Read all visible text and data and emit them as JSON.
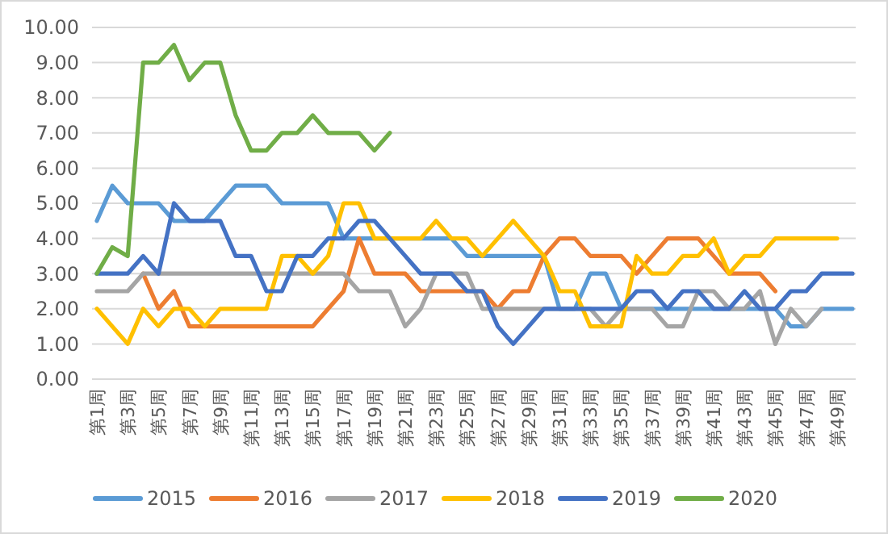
{
  "chart_data": {
    "type": "line",
    "categories": [
      "第1周",
      null,
      "第3周",
      null,
      "第5周",
      null,
      "第7周",
      null,
      "第9周",
      null,
      "第11周",
      null,
      "第13周",
      null,
      "第15周",
      null,
      "第17周",
      null,
      "第19周",
      null,
      "第21周",
      null,
      "第23周",
      null,
      "第25周",
      null,
      "第27周",
      null,
      "第29周",
      null,
      "第31周",
      null,
      "第33周",
      null,
      "第35周",
      null,
      "第37周",
      null,
      "第39周",
      null,
      "第41周",
      null,
      "第43周",
      null,
      "第45周",
      null,
      "第47周",
      null,
      "第49周",
      null
    ],
    "series": [
      {
        "name": "2015",
        "color": "#5b9bd5",
        "values": [
          4.5,
          5.5,
          5,
          5,
          5,
          4.5,
          4.5,
          4.5,
          5,
          5.5,
          5.5,
          5.5,
          5,
          5,
          5,
          5,
          4,
          4,
          4,
          4,
          4,
          4,
          4,
          4,
          3.5,
          3.5,
          3.5,
          3.5,
          3.5,
          3.5,
          2,
          2,
          3,
          3,
          2,
          2,
          2,
          2,
          2,
          2,
          2,
          2,
          2,
          2,
          2,
          1.5,
          1.5,
          2,
          2,
          2
        ]
      },
      {
        "name": "2016",
        "color": "#ed7d31",
        "values": [
          null,
          null,
          null,
          3,
          2,
          2.5,
          1.5,
          1.5,
          1.5,
          1.5,
          1.5,
          1.5,
          1.5,
          1.5,
          1.5,
          2,
          2.5,
          4,
          3,
          3,
          3,
          2.5,
          2.5,
          2.5,
          2.5,
          2.5,
          2,
          2.5,
          2.5,
          3.5,
          4,
          4,
          3.5,
          3.5,
          3.5,
          3,
          3.5,
          4,
          4,
          4,
          3.5,
          3,
          3,
          3,
          2.5,
          null,
          null,
          null,
          null,
          null
        ]
      },
      {
        "name": "2017",
        "color": "#a5a5a5",
        "values": [
          2.5,
          2.5,
          2.5,
          3,
          3,
          3,
          3,
          3,
          3,
          3,
          3,
          3,
          3,
          3,
          3,
          3,
          3,
          2.5,
          2.5,
          2.5,
          1.5,
          2,
          3,
          3,
          3,
          2,
          2,
          2,
          2,
          2,
          2,
          2,
          2,
          1.5,
          2,
          2,
          2,
          1.5,
          1.5,
          2.5,
          2.5,
          2,
          2,
          2.5,
          1,
          2,
          1.5,
          2,
          null,
          null
        ]
      },
      {
        "name": "2018",
        "color": "#ffc000",
        "values": [
          2,
          1.5,
          1,
          2,
          1.5,
          2,
          2,
          1.5,
          2,
          2,
          2,
          2,
          3.5,
          3.5,
          3,
          3.5,
          5,
          5,
          4,
          4,
          4,
          4,
          4.5,
          4,
          4,
          3.5,
          4,
          4.5,
          4,
          3.5,
          2.5,
          2.5,
          1.5,
          1.5,
          1.5,
          3.5,
          3,
          3,
          3.5,
          3.5,
          4,
          3,
          3.5,
          3.5,
          4,
          4,
          4,
          4,
          4,
          null
        ]
      },
      {
        "name": "2019",
        "color": "#4472c4",
        "values": [
          3,
          3,
          3,
          3.5,
          3,
          5,
          4.5,
          4.5,
          4.5,
          3.5,
          3.5,
          2.5,
          2.5,
          3.5,
          3.5,
          4,
          4,
          4.5,
          4.5,
          4,
          3.5,
          3,
          3,
          3,
          2.5,
          2.5,
          1.5,
          1,
          1.5,
          2,
          2,
          2,
          2,
          2,
          2,
          2.5,
          2.5,
          2,
          2.5,
          2.5,
          2,
          2,
          2.5,
          2,
          2,
          2.5,
          2.5,
          3,
          3,
          3
        ]
      },
      {
        "name": "2020",
        "color": "#70ad47",
        "values": [
          3,
          3.75,
          3.5,
          9,
          9,
          9.5,
          8.5,
          9,
          9,
          7.5,
          6.5,
          6.5,
          7,
          7,
          7.5,
          7,
          7,
          7,
          6.5,
          7,
          null,
          null,
          null,
          null,
          null,
          null,
          null,
          null,
          null,
          null,
          null,
          null,
          null,
          null,
          null,
          null,
          null,
          null,
          null,
          null,
          null,
          null,
          null,
          null,
          null,
          null,
          null,
          null,
          null,
          null
        ]
      }
    ],
    "ylim": [
      0,
      10
    ],
    "yticks": [
      {
        "value": 0,
        "label": "0.00"
      },
      {
        "value": 1,
        "label": "1.00"
      },
      {
        "value": 2,
        "label": "2.00"
      },
      {
        "value": 3,
        "label": "3.00"
      },
      {
        "value": 4,
        "label": "4.00"
      },
      {
        "value": 5,
        "label": "5.00"
      },
      {
        "value": 6,
        "label": "6.00"
      },
      {
        "value": 7,
        "label": "7.00"
      },
      {
        "value": 8,
        "label": "8.00"
      },
      {
        "value": 9,
        "label": "9.00"
      },
      {
        "value": 10,
        "label": "10.00"
      }
    ],
    "grid": "y",
    "legend": "bottom"
  }
}
